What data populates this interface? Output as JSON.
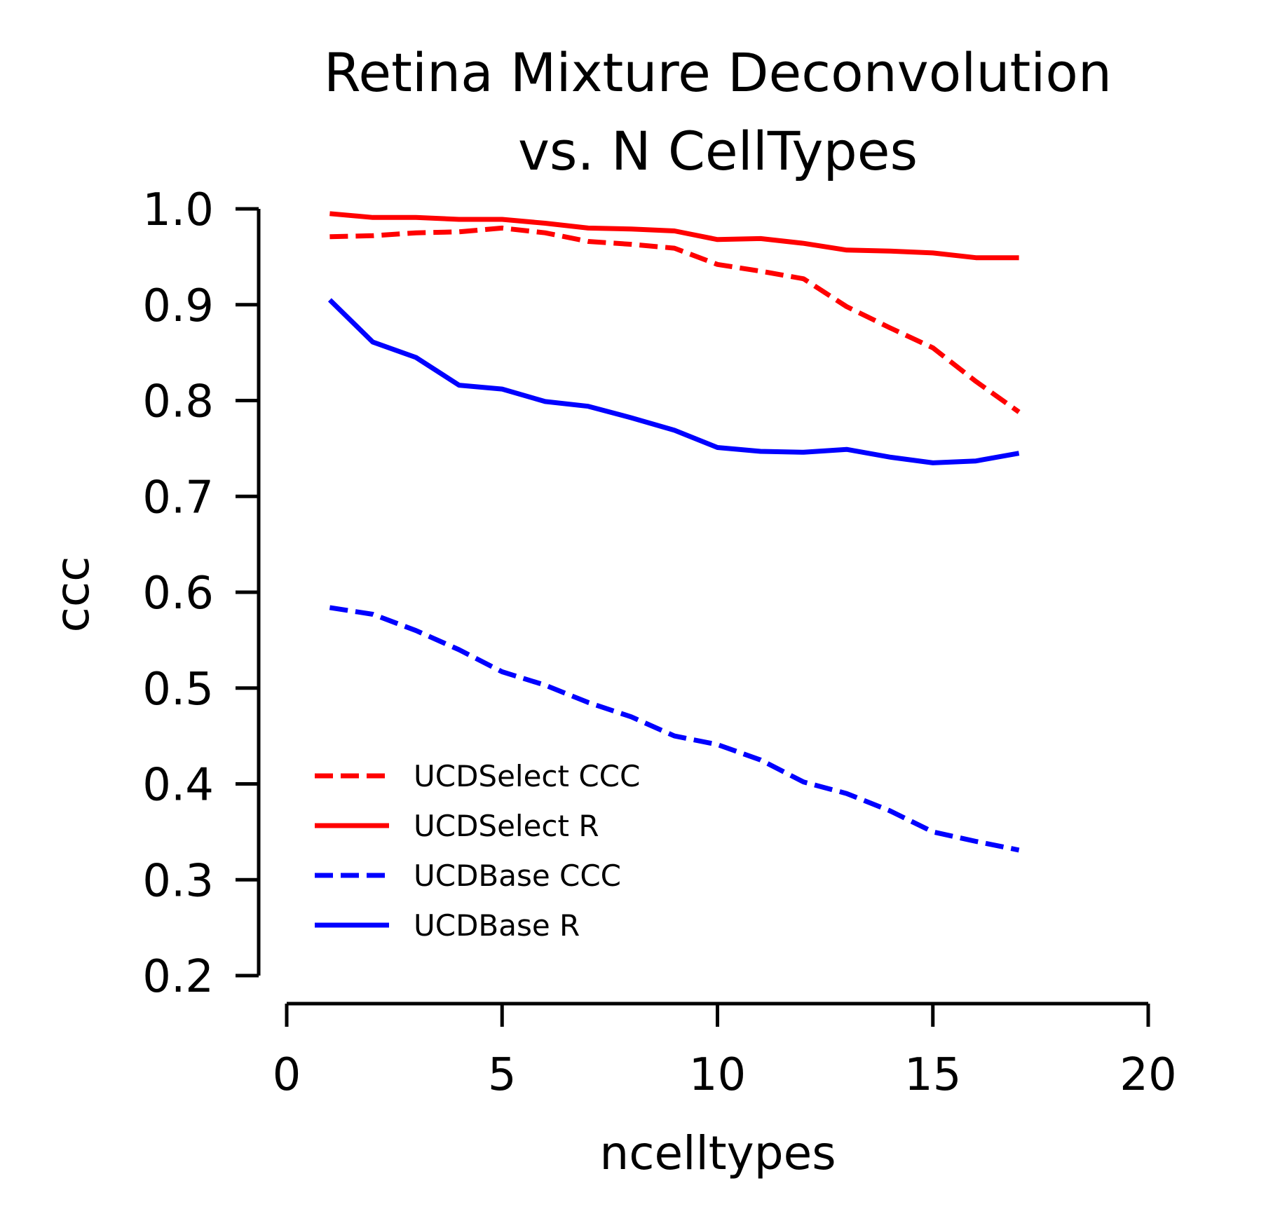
{
  "chart_data": {
    "type": "line",
    "title": "Retina Mixture Deconvolution",
    "subtitle": "vs. N CellTypes",
    "xlabel": "ncelltypes",
    "ylabel": "ccc",
    "xlim": [
      0,
      20
    ],
    "ylim": [
      0.2,
      1.0
    ],
    "xticks": [
      0,
      5,
      10,
      15,
      20
    ],
    "yticks": [
      0.2,
      0.3,
      0.4,
      0.5,
      0.6,
      0.7,
      0.8,
      0.9,
      1.0
    ],
    "xtick_labels": [
      "0",
      "5",
      "10",
      "15",
      "20"
    ],
    "ytick_labels": [
      "0.2",
      "0.3",
      "0.4",
      "0.5",
      "0.6",
      "0.7",
      "0.8",
      "0.9",
      "1.0"
    ],
    "grid": false,
    "legend_position": "lower-left",
    "x": [
      1,
      2,
      3,
      4,
      5,
      6,
      7,
      8,
      9,
      10,
      11,
      12,
      13,
      14,
      15,
      16,
      17
    ],
    "series": [
      {
        "name": "UCDSelect CCC",
        "color": "#ff0000",
        "style": "dashed",
        "values": [
          0.971,
          0.972,
          0.975,
          0.976,
          0.98,
          0.975,
          0.966,
          0.963,
          0.959,
          0.942,
          0.935,
          0.927,
          0.898,
          0.876,
          0.855,
          0.82,
          0.788
        ]
      },
      {
        "name": "UCDSelect R",
        "color": "#ff0000",
        "style": "solid",
        "values": [
          0.995,
          0.991,
          0.991,
          0.989,
          0.989,
          0.985,
          0.98,
          0.979,
          0.977,
          0.968,
          0.969,
          0.964,
          0.957,
          0.956,
          0.954,
          0.949,
          0.949
        ]
      },
      {
        "name": "UCDBase CCC",
        "color": "#0000ff",
        "style": "dashed",
        "values": [
          0.584,
          0.577,
          0.56,
          0.54,
          0.517,
          0.503,
          0.485,
          0.47,
          0.45,
          0.441,
          0.425,
          0.402,
          0.39,
          0.372,
          0.35,
          0.34,
          0.331
        ]
      },
      {
        "name": "UCDBase R",
        "color": "#0000ff",
        "style": "solid",
        "values": [
          0.905,
          0.861,
          0.845,
          0.816,
          0.812,
          0.799,
          0.794,
          0.782,
          0.769,
          0.751,
          0.747,
          0.746,
          0.749,
          0.741,
          0.735,
          0.737,
          0.745
        ]
      }
    ]
  }
}
